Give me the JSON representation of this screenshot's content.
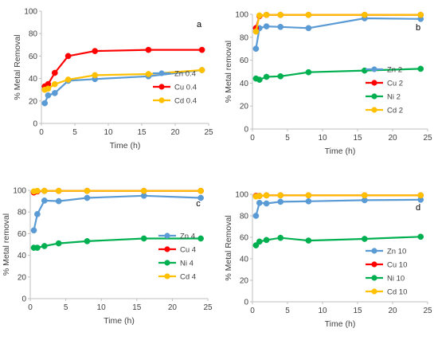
{
  "colors": {
    "Zn": "#5b9bd5",
    "Cu": "#ff0000",
    "Ni": "#00b050",
    "Cd": "#ffc000",
    "axis": "#bfbfbf",
    "text": "#404040"
  },
  "chart_data": [
    {
      "type": "line",
      "panel": "a",
      "xlabel": "Time (h)",
      "ylabel": "% Metal Removal",
      "xlim": [
        0,
        25
      ],
      "xticks": [
        0,
        5,
        10,
        15,
        20,
        25
      ],
      "ylim": [
        0,
        100
      ],
      "yticks": [
        0,
        20,
        40,
        60,
        80,
        100
      ],
      "grid": false,
      "legend": "bottom-right",
      "series": [
        {
          "name": "Zn 0.4",
          "metal": "Zn",
          "x": [
            0.5,
            1,
            2,
            4,
            8,
            16,
            24
          ],
          "y": [
            18,
            25,
            27,
            38,
            39.5,
            42,
            47.5
          ]
        },
        {
          "name": "Cu 0.4",
          "metal": "Cu",
          "x": [
            0.5,
            1,
            2,
            4,
            8,
            16,
            24
          ],
          "y": [
            33,
            35,
            45,
            60,
            64.5,
            65.5,
            65.5
          ]
        },
        {
          "name": "Cd 0.4",
          "metal": "Cd",
          "x": [
            0.5,
            1,
            2,
            4,
            8,
            16,
            24
          ],
          "y": [
            30,
            31,
            35,
            39,
            43,
            44,
            47.5
          ]
        }
      ]
    },
    {
      "type": "line",
      "panel": "b",
      "xlabel": "Time (h)",
      "ylabel": "% Metal removal",
      "xlim": [
        0,
        25
      ],
      "xticks": [
        0,
        5,
        10,
        15,
        20,
        25
      ],
      "ylim": [
        0,
        100
      ],
      "yticks": [
        0,
        20,
        40,
        60,
        80,
        100
      ],
      "grid": false,
      "legend": "bottom-right",
      "series": [
        {
          "name": "Zn 2",
          "metal": "Zn",
          "x": [
            0.5,
            1,
            2,
            4,
            8,
            16,
            24
          ],
          "y": [
            70,
            88,
            89.5,
            89,
            88,
            96.5,
            96
          ]
        },
        {
          "name": "Cu 2",
          "metal": "Cu",
          "x": [
            0.5,
            1,
            2,
            4,
            8,
            16,
            24
          ],
          "y": [
            88,
            98.5,
            99.5,
            99.5,
            99.5,
            99.5,
            99.5
          ]
        },
        {
          "name": "Ni 2",
          "metal": "Ni",
          "x": [
            0.5,
            1,
            2,
            4,
            8,
            16,
            24
          ],
          "y": [
            44,
            43,
            45.5,
            46,
            49.5,
            51,
            52.5
          ]
        },
        {
          "name": "Cd 2",
          "metal": "Cd",
          "x": [
            0.5,
            1,
            2,
            4,
            8,
            16,
            24
          ],
          "y": [
            85,
            99,
            99.5,
            99.5,
            99.5,
            99.5,
            99.5
          ]
        }
      ]
    },
    {
      "type": "line",
      "panel": "c",
      "xlabel": "Time (h)",
      "ylabel": "% Metal removal",
      "xlim": [
        0,
        25
      ],
      "xticks": [
        0,
        5,
        10,
        15,
        20,
        25
      ],
      "ylim": [
        0,
        100
      ],
      "yticks": [
        0,
        20,
        40,
        60,
        80,
        100
      ],
      "grid": false,
      "legend": "bottom-right",
      "series": [
        {
          "name": "Zn 4",
          "metal": "Zn",
          "x": [
            0.5,
            1,
            2,
            4,
            8,
            16,
            24
          ],
          "y": [
            63,
            78,
            90.5,
            90,
            93,
            95,
            93
          ]
        },
        {
          "name": "Cu 4",
          "metal": "Cu",
          "x": [
            0.5,
            1,
            2,
            4,
            8,
            16,
            24
          ],
          "y": [
            98,
            99,
            99.5,
            99.5,
            99.5,
            99.5,
            99.5
          ]
        },
        {
          "name": "Ni 4",
          "metal": "Ni",
          "x": [
            0.5,
            1,
            2,
            4,
            8,
            16,
            24
          ],
          "y": [
            47,
            47,
            48.5,
            51,
            53,
            55.5,
            55.5
          ]
        },
        {
          "name": "Cd 4",
          "metal": "Cd",
          "x": [
            0.5,
            1,
            2,
            4,
            8,
            16,
            24
          ],
          "y": [
            99,
            99.5,
            99.5,
            99.5,
            99.5,
            99.5,
            99.5
          ]
        }
      ]
    },
    {
      "type": "line",
      "panel": "d",
      "xlabel": "Time (h)",
      "ylabel": "% Metal Removal",
      "xlim": [
        0,
        25
      ],
      "xticks": [
        0,
        5,
        10,
        15,
        20,
        25
      ],
      "ylim": [
        0,
        100
      ],
      "yticks": [
        0,
        20,
        40,
        60,
        80,
        100
      ],
      "grid": false,
      "legend": "bottom-right",
      "series": [
        {
          "name": "Zn 10",
          "metal": "Zn",
          "x": [
            0.5,
            1,
            2,
            4,
            8,
            16,
            24
          ],
          "y": [
            80,
            92,
            91.5,
            93,
            93.5,
            94.5,
            95
          ]
        },
        {
          "name": "Cu 10",
          "metal": "Cu",
          "x": [
            0.5,
            1,
            2,
            4,
            8,
            16,
            24
          ],
          "y": [
            98.5,
            98.5,
            99,
            99,
            99,
            99,
            99
          ]
        },
        {
          "name": "Ni 10",
          "metal": "Ni",
          "x": [
            0.5,
            1,
            2,
            4,
            8,
            16,
            24
          ],
          "y": [
            52.5,
            56,
            57.5,
            59.5,
            57,
            58.5,
            60.5
          ]
        },
        {
          "name": "Cd 10",
          "metal": "Cd",
          "x": [
            0.5,
            1,
            2,
            4,
            8,
            16,
            24
          ],
          "y": [
            98,
            98.5,
            99,
            99,
            99,
            99,
            99
          ]
        }
      ]
    }
  ]
}
